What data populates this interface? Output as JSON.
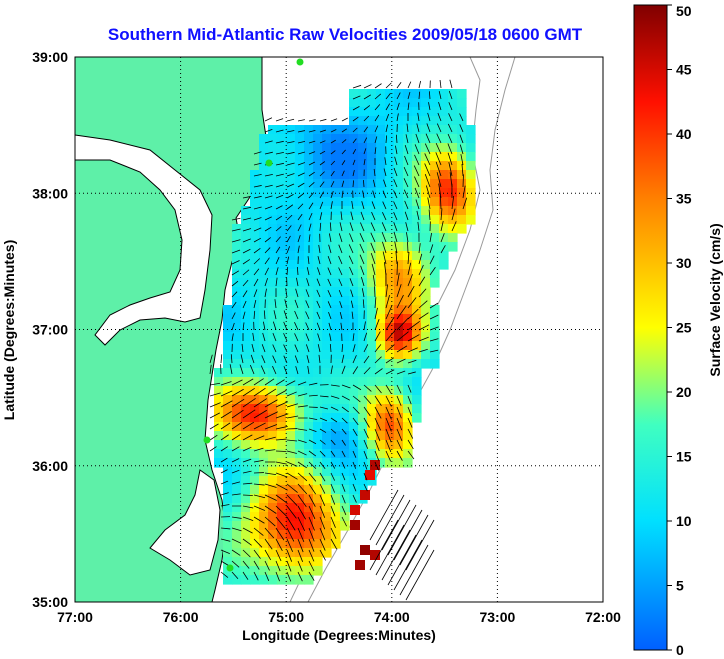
{
  "chart_data": {
    "type": "heatmap",
    "title": "Southern Mid-Atlantic Raw Velocities 2009/05/18 0600 GMT",
    "xlabel": "Longitude (Degrees:Minutes)",
    "ylabel": "Latitude (Degrees:Minutes)",
    "colorbar_label": "Surface Velocity (cm/s)",
    "x_ticks": [
      "77:00",
      "76:00",
      "75:00",
      "74:00",
      "73:00",
      "72:00"
    ],
    "y_ticks": [
      "35:00",
      "36:00",
      "37:00",
      "38:00",
      "39:00"
    ],
    "colorbar_ticks": [
      "0",
      "5",
      "10",
      "15",
      "20",
      "25",
      "30",
      "35",
      "40",
      "45",
      "50"
    ],
    "xlim": [
      -77,
      -72
    ],
    "ylim": [
      35,
      39
    ],
    "clim": [
      0,
      50
    ],
    "grid": true,
    "colormap": "jet",
    "colors": {
      "land": "#5ef0a8",
      "water": "#ffffff",
      "coastline": "#000000",
      "bathymetry": "#9a9a9a",
      "vectors": "#000000",
      "station_marker": "#22dd22",
      "title": "#1010ff"
    }
  }
}
